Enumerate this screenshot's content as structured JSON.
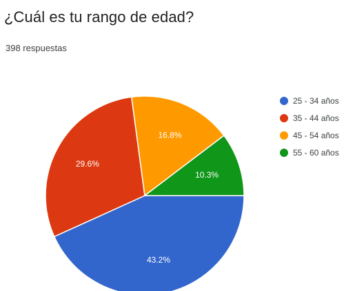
{
  "question": {
    "title": "¿Cuál es tu rango de edad?",
    "responses": "398 respuestas"
  },
  "chart_data": {
    "type": "pie",
    "categories": [
      "25 - 34 años",
      "35 - 44 años",
      "45 - 54 años",
      "55 - 60 años"
    ],
    "values": [
      43.2,
      29.6,
      16.8,
      10.3
    ],
    "labels": [
      "43.2%",
      "29.6%",
      "16.8%",
      "10.3%"
    ],
    "colors": [
      "#3366cc",
      "#dc3912",
      "#ff9900",
      "#109618"
    ],
    "start": "3 o'clock",
    "direction": "clockwise",
    "legend": "right"
  }
}
